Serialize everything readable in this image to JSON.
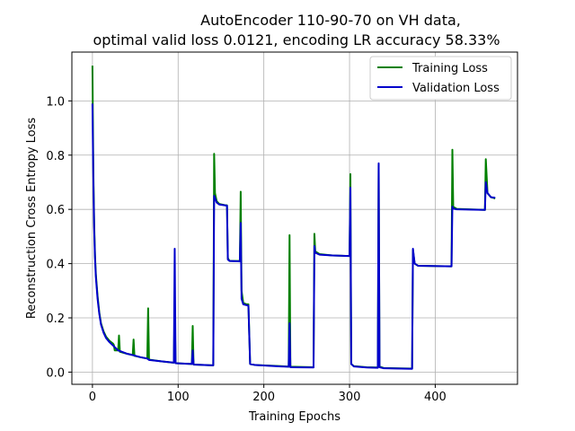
{
  "chart_data": {
    "type": "line",
    "title": "AutoEncoder 110-90-70 on VH data,",
    "subtitle": "optimal valid loss 0.0121, encoding LR accuracy 58.33%",
    "xlabel": "Training Epochs",
    "ylabel": "Reconstruction Cross Entropy Loss",
    "xlim": [
      -24,
      496
    ],
    "ylim": [
      -0.045,
      1.18
    ],
    "xticks": [
      0,
      100,
      200,
      300,
      400
    ],
    "yticks": [
      0.0,
      0.2,
      0.4,
      0.6,
      0.8,
      1.0
    ],
    "xtick_labels": [
      "0",
      "100",
      "200",
      "300",
      "400"
    ],
    "ytick_labels": [
      "0.0",
      "0.2",
      "0.4",
      "0.6",
      "0.8",
      "1.0"
    ],
    "grid": true,
    "legend_position": "top-right",
    "series": [
      {
        "name": "Training Loss",
        "color": "#008000",
        "points": [
          [
            0,
            1.13
          ],
          [
            1,
            0.75
          ],
          [
            2,
            0.55
          ],
          [
            3,
            0.43
          ],
          [
            4,
            0.36
          ],
          [
            6,
            0.28
          ],
          [
            8,
            0.22
          ],
          [
            10,
            0.18
          ],
          [
            13,
            0.15
          ],
          [
            16,
            0.13
          ],
          [
            20,
            0.115
          ],
          [
            24,
            0.105
          ],
          [
            25,
            0.1
          ],
          [
            26,
            0.08
          ],
          [
            30,
            0.08
          ],
          [
            31,
            0.135
          ],
          [
            32,
            0.075
          ],
          [
            40,
            0.068
          ],
          [
            47,
            0.063
          ],
          [
            48,
            0.12
          ],
          [
            49,
            0.06
          ],
          [
            56,
            0.055
          ],
          [
            64,
            0.05
          ],
          [
            65,
            0.235
          ],
          [
            66,
            0.046
          ],
          [
            80,
            0.04
          ],
          [
            94,
            0.035
          ],
          [
            95,
            0.035
          ],
          [
            96,
            0.24
          ],
          [
            97,
            0.033
          ],
          [
            116,
            0.03
          ],
          [
            117,
            0.17
          ],
          [
            118,
            0.028
          ],
          [
            140,
            0.025
          ],
          [
            141,
            0.025
          ],
          [
            142,
            0.805
          ],
          [
            143,
            0.66
          ],
          [
            145,
            0.63
          ],
          [
            148,
            0.62
          ],
          [
            155,
            0.615
          ],
          [
            157,
            0.615
          ],
          [
            158,
            0.42
          ],
          [
            160,
            0.41
          ],
          [
            172,
            0.41
          ],
          [
            173,
            0.665
          ],
          [
            174,
            0.3
          ],
          [
            176,
            0.255
          ],
          [
            180,
            0.25
          ],
          [
            182,
            0.25
          ],
          [
            184,
            0.03
          ],
          [
            190,
            0.026
          ],
          [
            220,
            0.022
          ],
          [
            229,
            0.02
          ],
          [
            230,
            0.505
          ],
          [
            231,
            0.02
          ],
          [
            258,
            0.018
          ],
          [
            259,
            0.51
          ],
          [
            260,
            0.445
          ],
          [
            265,
            0.435
          ],
          [
            280,
            0.43
          ],
          [
            300,
            0.428
          ],
          [
            301,
            0.73
          ],
          [
            302,
            0.03
          ],
          [
            305,
            0.022
          ],
          [
            320,
            0.018
          ],
          [
            333,
            0.017
          ],
          [
            334,
            0.765
          ],
          [
            335,
            0.02
          ],
          [
            340,
            0.015
          ],
          [
            373,
            0.013
          ],
          [
            374,
            0.45
          ],
          [
            376,
            0.4
          ],
          [
            380,
            0.392
          ],
          [
            419,
            0.39
          ],
          [
            420,
            0.82
          ],
          [
            421,
            0.61
          ],
          [
            425,
            0.602
          ],
          [
            458,
            0.598
          ],
          [
            459,
            0.785
          ],
          [
            461,
            0.66
          ],
          [
            465,
            0.645
          ],
          [
            470,
            0.64
          ]
        ]
      },
      {
        "name": "Validation Loss",
        "color": "#0000cc",
        "points": [
          [
            0,
            0.99
          ],
          [
            1,
            0.72
          ],
          [
            2,
            0.53
          ],
          [
            3,
            0.42
          ],
          [
            4,
            0.35
          ],
          [
            6,
            0.27
          ],
          [
            8,
            0.215
          ],
          [
            10,
            0.175
          ],
          [
            13,
            0.145
          ],
          [
            16,
            0.125
          ],
          [
            20,
            0.11
          ],
          [
            25,
            0.095
          ],
          [
            30,
            0.08
          ],
          [
            40,
            0.068
          ],
          [
            48,
            0.062
          ],
          [
            56,
            0.055
          ],
          [
            64,
            0.05
          ],
          [
            66,
            0.045
          ],
          [
            80,
            0.04
          ],
          [
            95,
            0.035
          ],
          [
            96,
            0.455
          ],
          [
            97,
            0.033
          ],
          [
            116,
            0.03
          ],
          [
            117,
            0.08
          ],
          [
            118,
            0.028
          ],
          [
            140,
            0.025
          ],
          [
            141,
            0.025
          ],
          [
            142,
            0.65
          ],
          [
            145,
            0.625
          ],
          [
            148,
            0.618
          ],
          [
            157,
            0.614
          ],
          [
            158,
            0.415
          ],
          [
            160,
            0.41
          ],
          [
            172,
            0.408
          ],
          [
            173,
            0.55
          ],
          [
            174,
            0.27
          ],
          [
            176,
            0.25
          ],
          [
            182,
            0.245
          ],
          [
            184,
            0.03
          ],
          [
            190,
            0.026
          ],
          [
            220,
            0.021
          ],
          [
            229,
            0.02
          ],
          [
            230,
            0.18
          ],
          [
            231,
            0.018
          ],
          [
            258,
            0.017
          ],
          [
            259,
            0.465
          ],
          [
            260,
            0.44
          ],
          [
            265,
            0.433
          ],
          [
            280,
            0.43
          ],
          [
            300,
            0.428
          ],
          [
            301,
            0.68
          ],
          [
            302,
            0.03
          ],
          [
            305,
            0.021
          ],
          [
            320,
            0.017
          ],
          [
            333,
            0.016
          ],
          [
            334,
            0.77
          ],
          [
            335,
            0.018
          ],
          [
            340,
            0.014
          ],
          [
            373,
            0.012
          ],
          [
            374,
            0.455
          ],
          [
            376,
            0.4
          ],
          [
            380,
            0.392
          ],
          [
            419,
            0.39
          ],
          [
            420,
            0.61
          ],
          [
            421,
            0.603
          ],
          [
            425,
            0.6
          ],
          [
            458,
            0.598
          ],
          [
            459,
            0.7
          ],
          [
            461,
            0.66
          ],
          [
            465,
            0.645
          ],
          [
            470,
            0.643
          ]
        ]
      }
    ]
  }
}
